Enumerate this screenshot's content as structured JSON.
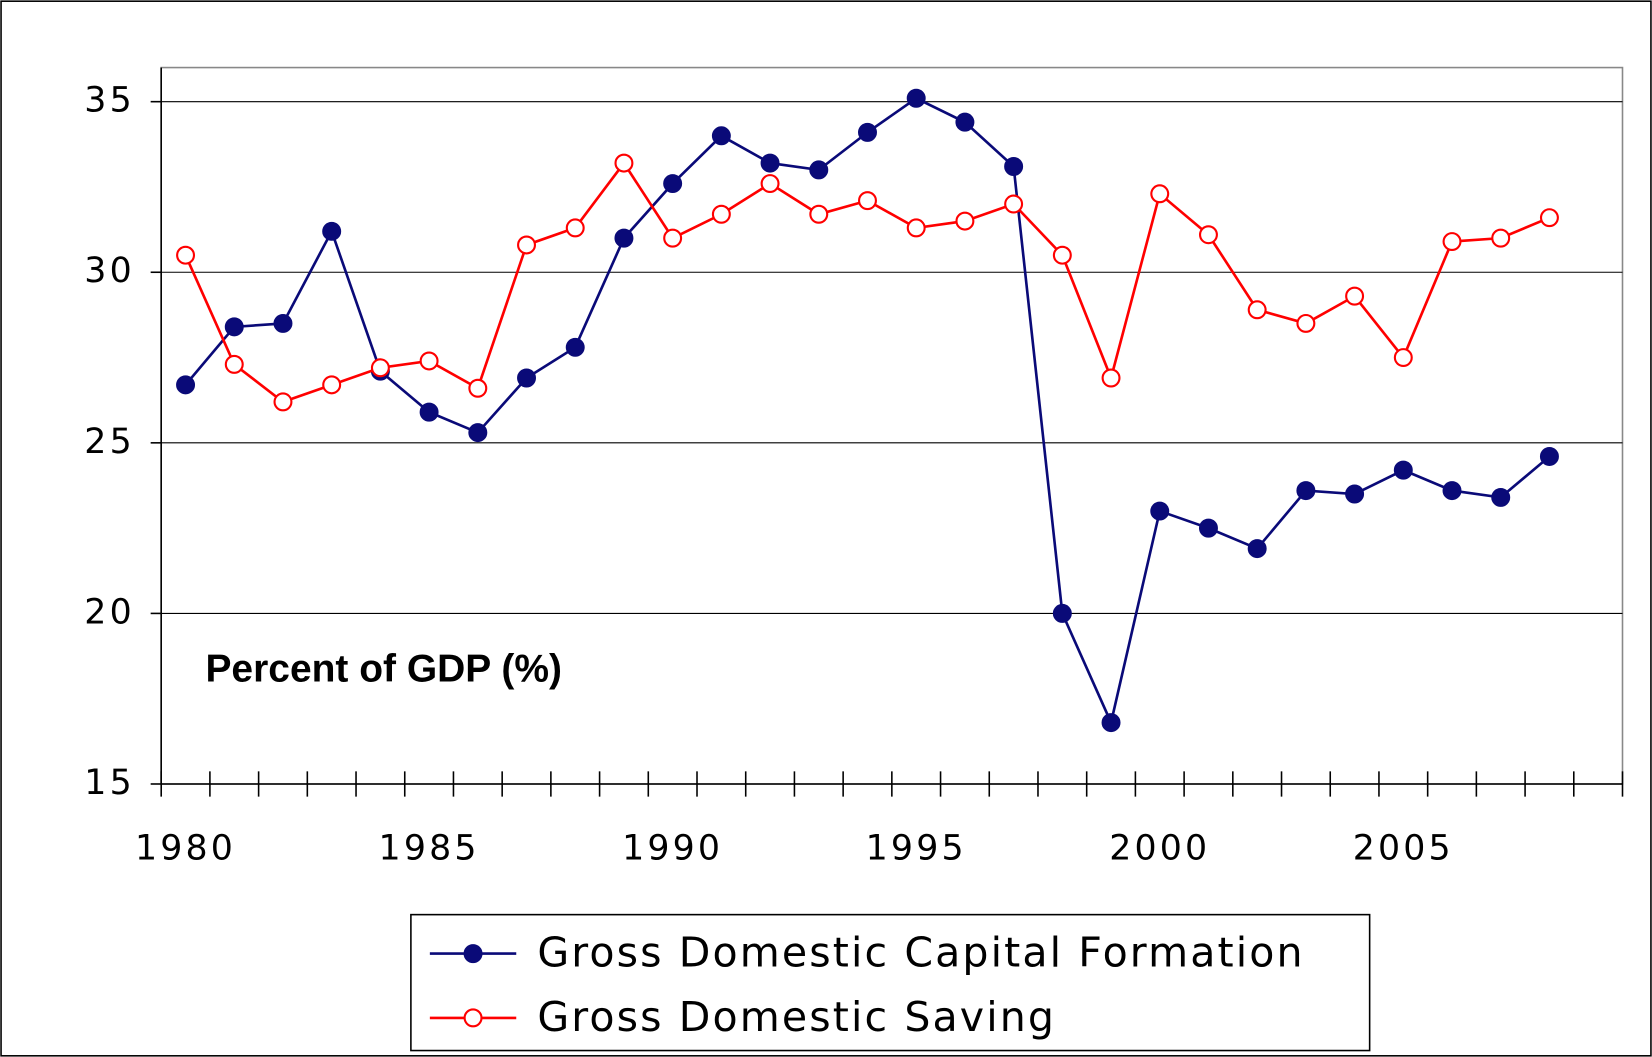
{
  "chart_data": {
    "type": "line",
    "annotation": "Percent of GDP (%)",
    "categories": [
      "1980",
      null,
      null,
      null,
      null,
      "1985",
      null,
      null,
      null,
      null,
      "1990",
      null,
      null,
      null,
      null,
      "1995",
      null,
      null,
      null,
      null,
      "2000",
      null,
      null,
      null,
      null,
      "2005",
      null,
      null,
      null,
      null
    ],
    "series": [
      {
        "name": "Gross Domestic Capital Formation",
        "color": "#0a0a78",
        "marker": "filled",
        "values": [
          26.7,
          28.4,
          28.5,
          31.2,
          27.1,
          25.9,
          25.3,
          26.9,
          27.8,
          31.0,
          32.6,
          34.0,
          33.2,
          33.0,
          34.1,
          35.1,
          34.4,
          33.1,
          20.0,
          16.8,
          23.0,
          22.5,
          21.9,
          23.6,
          23.5,
          24.2,
          23.6,
          23.4,
          24.6,
          null
        ]
      },
      {
        "name": "Gross Domestic Saving",
        "color": "#ff0000",
        "marker": "open",
        "values": [
          30.5,
          27.3,
          26.2,
          26.7,
          27.2,
          27.4,
          26.6,
          30.8,
          31.3,
          33.2,
          31.0,
          31.7,
          32.6,
          31.7,
          32.1,
          31.3,
          31.5,
          32.0,
          30.5,
          26.9,
          32.3,
          31.1,
          28.9,
          28.5,
          29.3,
          27.5,
          30.9,
          31.0,
          31.6,
          null
        ]
      }
    ],
    "ylim": [
      15,
      36
    ],
    "yticks": [
      15,
      20,
      25,
      30,
      35
    ],
    "grid": true,
    "legend": "bottom"
  }
}
